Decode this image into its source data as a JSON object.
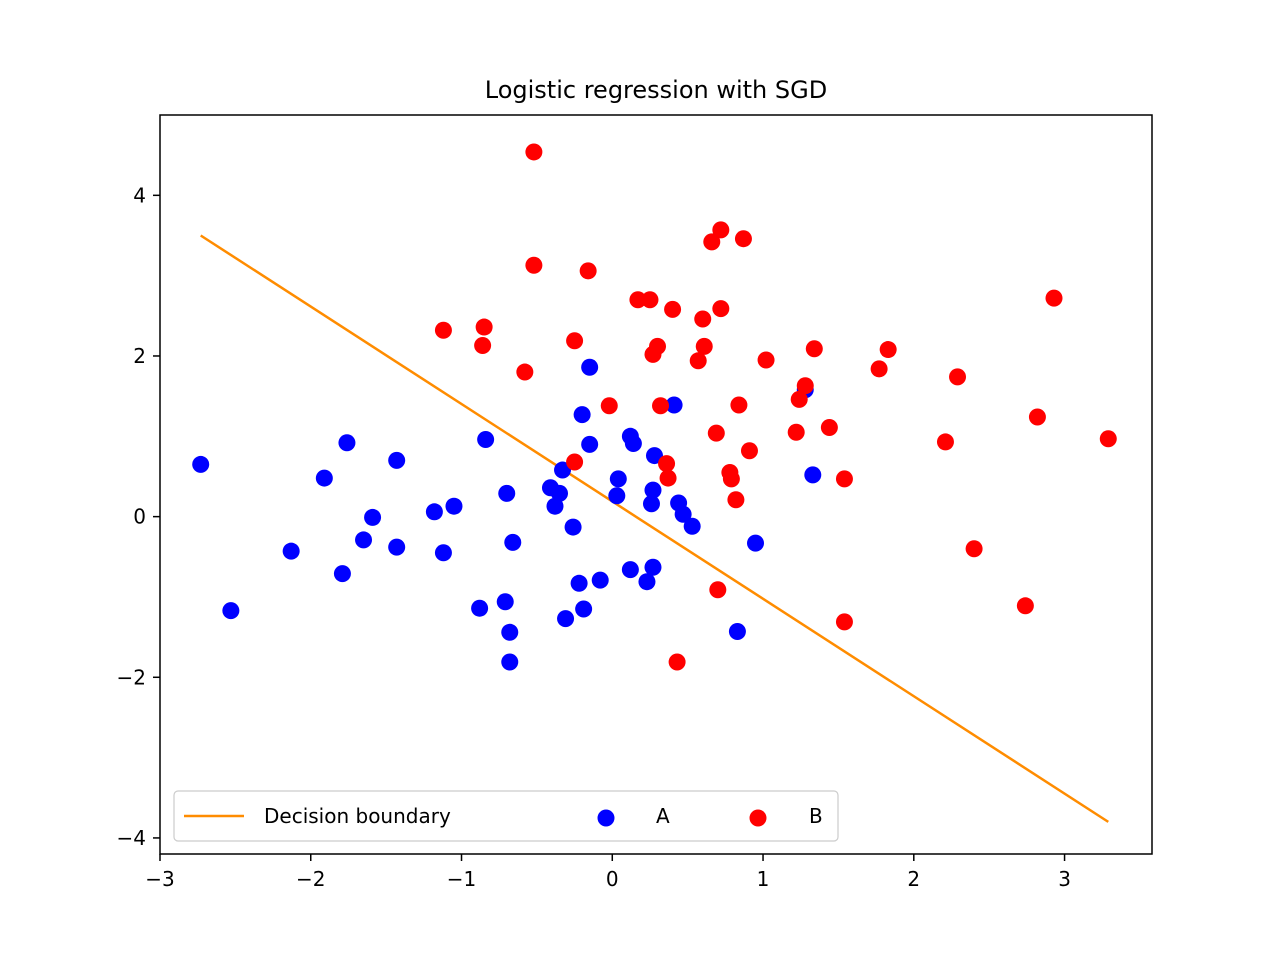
{
  "chart_data": {
    "type": "scatter",
    "title": "Logistic regression with SGD",
    "xlabel": "",
    "ylabel": "",
    "xlim": [
      -3.0,
      3.58
    ],
    "ylim": [
      -4.2,
      5.0
    ],
    "x_ticks": [
      -3,
      -2,
      -1,
      0,
      1,
      2,
      3
    ],
    "x_tick_labels": [
      "−3",
      "−2",
      "−1",
      "0",
      "1",
      "2",
      "3"
    ],
    "y_ticks": [
      -4,
      -2,
      0,
      2,
      4
    ],
    "y_tick_labels": [
      "−4",
      "−2",
      "0",
      "2",
      "4"
    ],
    "grid": false,
    "legend": {
      "placement": "lower-center",
      "entries": [
        "Decision boundary",
        "A",
        "B"
      ]
    },
    "colors": {
      "boundary": "#ff8c00",
      "A": "#0000ff",
      "B": "#ff0000"
    },
    "line": {
      "name": "Decision boundary",
      "x": [
        -2.73,
        3.29
      ],
      "y": [
        3.5,
        -3.8
      ]
    },
    "series": [
      {
        "name": "A",
        "points": [
          [
            -2.73,
            0.65
          ],
          [
            -2.53,
            -1.17
          ],
          [
            -2.13,
            -0.43
          ],
          [
            -1.91,
            0.48
          ],
          [
            -1.79,
            -0.71
          ],
          [
            -1.76,
            0.92
          ],
          [
            -1.65,
            -0.29
          ],
          [
            -1.59,
            -0.01
          ],
          [
            -1.43,
            0.7
          ],
          [
            -1.43,
            -0.38
          ],
          [
            -1.18,
            0.06
          ],
          [
            -1.12,
            -0.45
          ],
          [
            -1.05,
            0.13
          ],
          [
            -0.88,
            -1.14
          ],
          [
            -0.84,
            0.96
          ],
          [
            -0.7,
            0.29
          ],
          [
            -0.71,
            -1.06
          ],
          [
            -0.68,
            -1.44
          ],
          [
            -0.68,
            -1.81
          ],
          [
            -0.66,
            -0.32
          ],
          [
            -0.41,
            0.36
          ],
          [
            -0.38,
            0.13
          ],
          [
            -0.35,
            0.29
          ],
          [
            -0.33,
            0.58
          ],
          [
            -0.31,
            -1.27
          ],
          [
            -0.26,
            -0.13
          ],
          [
            -0.22,
            -0.83
          ],
          [
            -0.2,
            1.27
          ],
          [
            -0.19,
            -1.15
          ],
          [
            -0.15,
            1.86
          ],
          [
            -0.15,
            0.9
          ],
          [
            -0.08,
            -0.79
          ],
          [
            0.03,
            0.26
          ],
          [
            0.04,
            0.47
          ],
          [
            0.12,
            1.0
          ],
          [
            0.12,
            -0.66
          ],
          [
            0.14,
            0.91
          ],
          [
            0.23,
            -0.81
          ],
          [
            0.26,
            0.16
          ],
          [
            0.27,
            0.33
          ],
          [
            0.27,
            -0.63
          ],
          [
            0.28,
            0.76
          ],
          [
            0.41,
            1.39
          ],
          [
            0.44,
            0.17
          ],
          [
            0.47,
            0.03
          ],
          [
            0.53,
            -0.12
          ],
          [
            0.83,
            -1.43
          ],
          [
            0.95,
            -0.33
          ],
          [
            1.28,
            1.58
          ],
          [
            1.33,
            0.52
          ]
        ]
      },
      {
        "name": "B",
        "points": [
          [
            -0.52,
            4.54
          ],
          [
            -0.52,
            3.13
          ],
          [
            -0.58,
            1.8
          ],
          [
            -0.85,
            2.36
          ],
          [
            -0.86,
            2.13
          ],
          [
            -1.12,
            2.32
          ],
          [
            -0.25,
            2.19
          ],
          [
            -0.25,
            0.68
          ],
          [
            -0.16,
            3.06
          ],
          [
            -0.02,
            1.38
          ],
          [
            0.17,
            2.7
          ],
          [
            0.25,
            2.7
          ],
          [
            0.27,
            2.02
          ],
          [
            0.3,
            2.12
          ],
          [
            0.32,
            1.38
          ],
          [
            0.36,
            0.66
          ],
          [
            0.37,
            0.48
          ],
          [
            0.4,
            2.58
          ],
          [
            0.43,
            -1.81
          ],
          [
            0.6,
            2.46
          ],
          [
            0.61,
            2.12
          ],
          [
            0.57,
            1.94
          ],
          [
            0.66,
            3.42
          ],
          [
            0.69,
            1.04
          ],
          [
            0.7,
            -0.91
          ],
          [
            0.72,
            3.57
          ],
          [
            0.72,
            2.59
          ],
          [
            0.78,
            0.55
          ],
          [
            0.79,
            0.47
          ],
          [
            0.82,
            0.21
          ],
          [
            0.84,
            1.39
          ],
          [
            0.87,
            3.46
          ],
          [
            0.91,
            0.82
          ],
          [
            1.02,
            1.95
          ],
          [
            1.22,
            1.05
          ],
          [
            1.24,
            1.46
          ],
          [
            1.28,
            1.63
          ],
          [
            1.34,
            2.09
          ],
          [
            1.44,
            1.11
          ],
          [
            1.54,
            0.47
          ],
          [
            1.54,
            -1.31
          ],
          [
            1.77,
            1.84
          ],
          [
            1.83,
            2.08
          ],
          [
            2.21,
            0.93
          ],
          [
            2.29,
            1.74
          ],
          [
            2.4,
            -0.4
          ],
          [
            2.74,
            -1.11
          ],
          [
            2.82,
            1.24
          ],
          [
            2.93,
            2.72
          ],
          [
            3.29,
            0.97
          ]
        ]
      }
    ]
  }
}
